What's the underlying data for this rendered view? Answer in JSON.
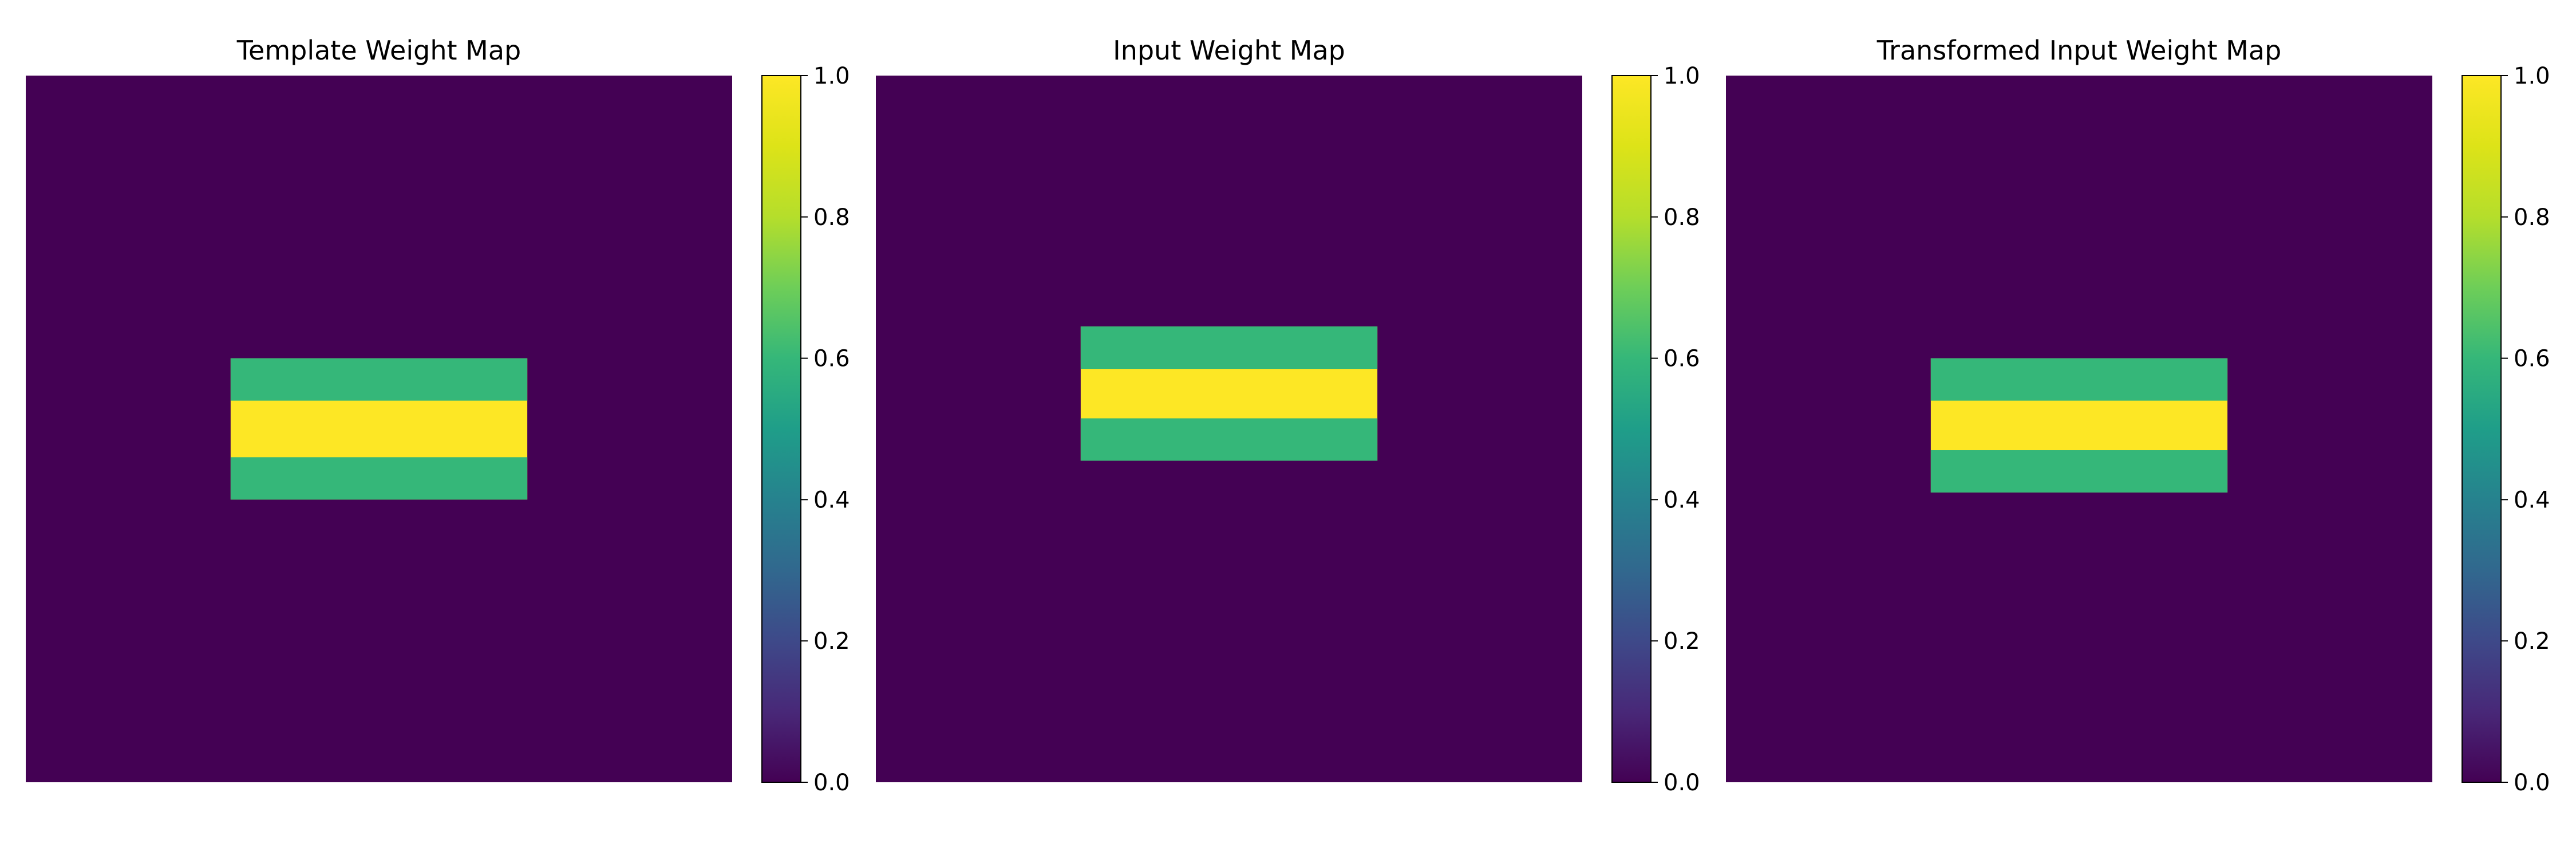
{
  "chart_data": [
    {
      "type": "heatmap",
      "title": "Template Weight Map",
      "colormap": "viridis",
      "clim": [
        0.0,
        1.0
      ],
      "colorbar_ticks": [
        "0.0",
        "0.2",
        "0.4",
        "0.6",
        "0.8",
        "1.0"
      ],
      "grid_size": [
        100,
        100
      ],
      "background_value": 0.0,
      "regions": [
        {
          "value": 1.0,
          "x": [
            29,
            71
          ],
          "y": [
            40,
            60
          ]
        },
        {
          "value": 0.6,
          "x": [
            29,
            71
          ],
          "y": [
            40,
            46
          ]
        },
        {
          "value": 0.6,
          "x": [
            29,
            71
          ],
          "y": [
            54,
            60
          ]
        }
      ]
    },
    {
      "type": "heatmap",
      "title": "Input Weight Map",
      "colormap": "viridis",
      "clim": [
        0.0,
        1.0
      ],
      "colorbar_ticks": [
        "0.0",
        "0.2",
        "0.4",
        "0.6",
        "0.8",
        "1.0"
      ],
      "grid_size": [
        100,
        100
      ],
      "background_value": 0.0,
      "regions": [
        {
          "value": 1.0,
          "x": [
            29,
            71
          ],
          "y": [
            35.5,
            54.5
          ]
        },
        {
          "value": 0.6,
          "x": [
            29,
            71
          ],
          "y": [
            35.5,
            41.5
          ]
        },
        {
          "value": 0.6,
          "x": [
            29,
            71
          ],
          "y": [
            48.5,
            54.5
          ]
        }
      ]
    },
    {
      "type": "heatmap",
      "title": "Transformed Input Weight Map",
      "colormap": "viridis",
      "clim": [
        0.0,
        1.0
      ],
      "colorbar_ticks": [
        "0.0",
        "0.2",
        "0.4",
        "0.6",
        "0.8",
        "1.0"
      ],
      "grid_size": [
        100,
        100
      ],
      "background_value": 0.0,
      "regions": [
        {
          "value": 1.0,
          "x": [
            29,
            71
          ],
          "y": [
            40,
            59
          ]
        },
        {
          "value": 0.6,
          "x": [
            29,
            71
          ],
          "y": [
            40,
            46
          ]
        },
        {
          "value": 0.6,
          "x": [
            29,
            71
          ],
          "y": [
            53,
            59
          ]
        }
      ]
    }
  ]
}
